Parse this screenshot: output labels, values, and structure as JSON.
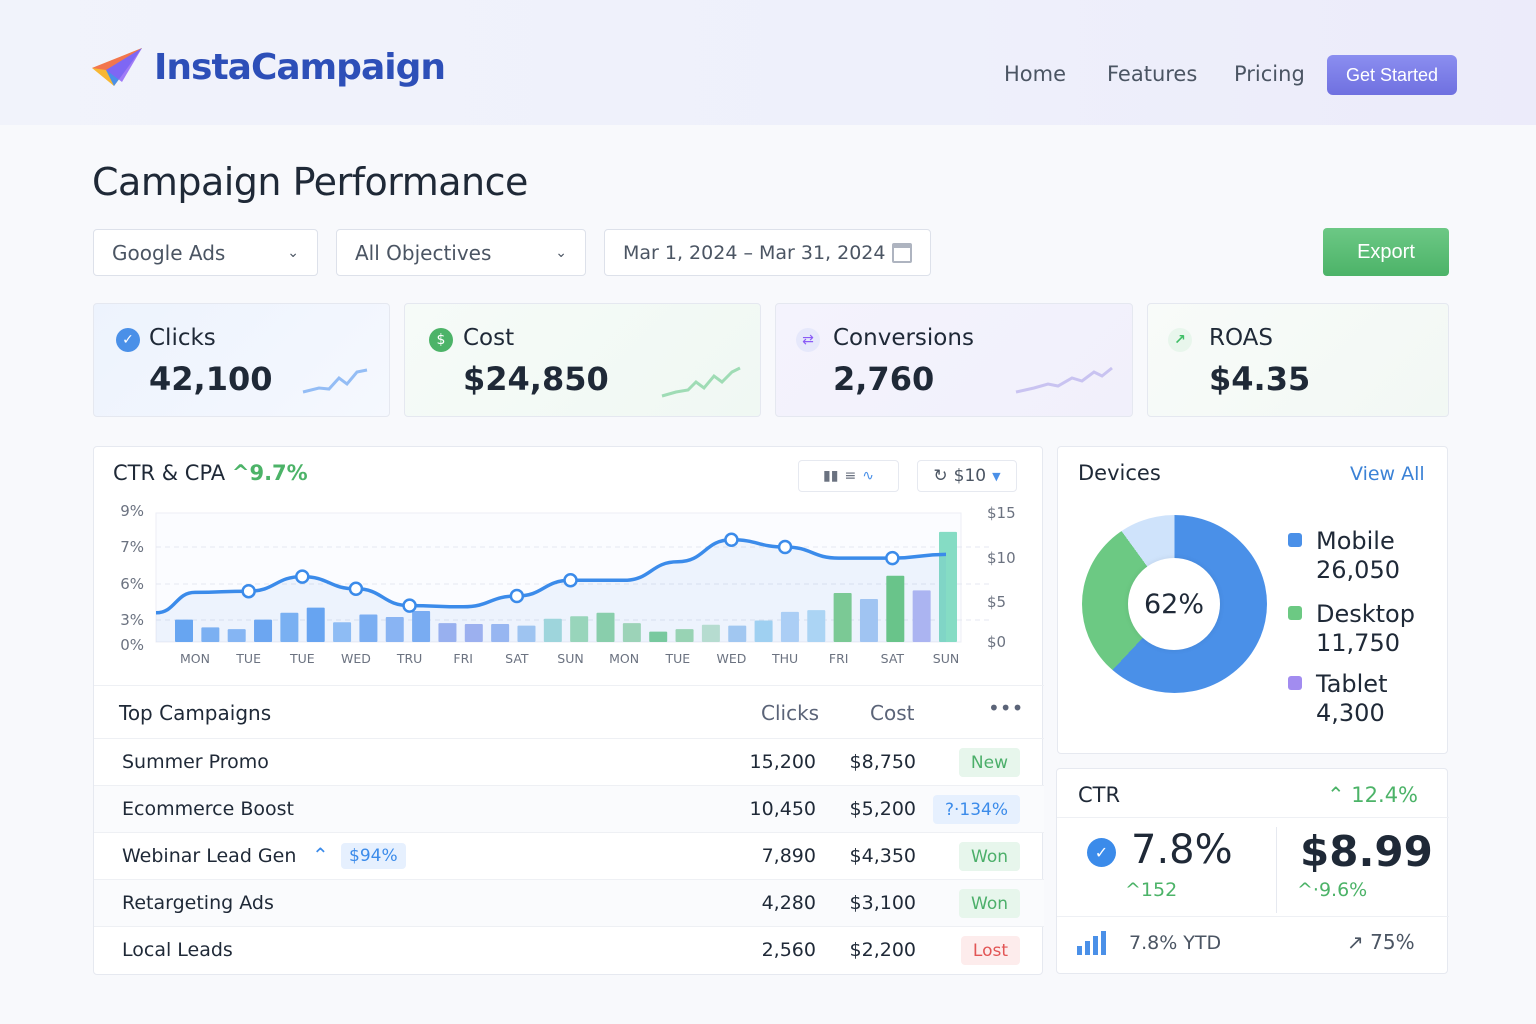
{
  "brand": {
    "name": "InstaCampaign"
  },
  "nav": {
    "items": [
      "Home",
      "Features",
      "Pricing"
    ],
    "cta": "Get Started"
  },
  "page": {
    "title": "Campaign Performance"
  },
  "filters": {
    "platform": "Google Ads",
    "objective": "All Objectives",
    "date_range": "Mar 1, 2024 – Mar 31, 2024",
    "export": "Export"
  },
  "kpis": [
    {
      "label": "Clicks",
      "value": "42,100",
      "icon": "check-circle-icon",
      "color": "#4a90e8"
    },
    {
      "label": "Cost",
      "value": "$24,850",
      "icon": "dollar-circle-icon",
      "color": "#4cb368"
    },
    {
      "label": "Conversions",
      "value": "2,760",
      "icon": "arrows-exchange-icon",
      "color": "#8b5cf6"
    },
    {
      "label": "ROAS",
      "value": "$4.35",
      "icon": "trend-up-icon",
      "color": "#3fbf66"
    }
  ],
  "ctr_chart": {
    "title": "CTR & CPA",
    "change": "^9.7%",
    "currency_select": "$10"
  },
  "chart_data": {
    "type": "bar+line",
    "categories": [
      "MON",
      "TUE",
      "TUE",
      "WED",
      "TRU",
      "FRI",
      "SAT",
      "SUN",
      "MON",
      "TUE",
      "WED",
      "THU",
      "FRI",
      "SAT",
      "SUN"
    ],
    "left_ticks": [
      "9%",
      "7%",
      "6%",
      "3%",
      "0%"
    ],
    "right_ticks": [
      "$15",
      "$10",
      "$5",
      "$0"
    ],
    "line_ctr_percent": [
      5.3,
      5.4,
      6.2,
      5.6,
      4.2,
      4.1,
      5.0,
      6.1,
      6.1,
      6.6,
      7.4,
      7.0,
      6.7,
      6.7,
      6.8
    ],
    "bars_cost_usd": [
      2.6,
      1.7,
      1.5,
      2.6,
      3.4,
      4.0,
      2.3,
      3.2,
      2.9,
      3.6,
      2.2,
      2.1,
      2.1,
      1.9,
      2.7,
      3.0,
      3.4,
      2.2,
      1.2,
      1.5,
      2.0,
      1.9,
      2.5,
      3.5,
      3.7,
      5.7,
      5.0,
      7.7,
      6.0,
      12.8
    ],
    "bar_colors": [
      "#6aa8f2",
      "#7fb3f4",
      "#8ab9f5",
      "#6fa9f2",
      "#7db4f4",
      "#6aa6f2",
      "#94c0f6",
      "#7fb1f4",
      "#8fb8f5",
      "#7daff3",
      "#9fb3f0",
      "#a3b4f0",
      "#9ebaf2",
      "#a5c9f2",
      "#a5dcdc",
      "#9fdcb8",
      "#8fd4a8",
      "#a3d9b5",
      "#7ccf9a",
      "#9fd9b0",
      "#bfe3cf",
      "#a9cdf2",
      "#a7d6f2",
      "#b3d4f7",
      "#b4dbf6",
      "#7fcf8f",
      "#a8c9f4",
      "#6cc983",
      "#b3b8f2",
      "#85dcc4"
    ],
    "ylim_left": [
      0,
      9
    ],
    "ylim_right": [
      0,
      15
    ],
    "grid": true
  },
  "devices": {
    "title": "Devices",
    "link": "View All",
    "center_label": "62%",
    "items": [
      {
        "label": "Mobile",
        "value": "26,050",
        "share": 62,
        "color": "#4a90e8"
      },
      {
        "label": "Desktop",
        "value": "11,750",
        "share": 28,
        "color": "#6cc983"
      },
      {
        "label": "Tablet",
        "value": "4,300",
        "share": 10,
        "color": "#a28cf0",
        "ring_color": "#cfe3fb"
      }
    ]
  },
  "campaigns": {
    "title": "Top Campaigns",
    "col_clicks": "Clicks",
    "col_cost": "Cost",
    "rows": [
      {
        "name": "Summer Promo",
        "clicks": "15,200",
        "cost": "$8,750",
        "badge": "New",
        "badge_type": "green"
      },
      {
        "name": "Ecommerce Boost",
        "clicks": "10,450",
        "cost": "$5,200",
        "badge": "?·134%",
        "badge_type": "blue"
      },
      {
        "name": "Webinar Lead Gen",
        "tag": "$94%",
        "clicks": "7,890",
        "cost": "$4,350",
        "badge": "Won",
        "badge_type": "green"
      },
      {
        "name": "Retargeting Ads",
        "clicks": "4,280",
        "cost": "$3,100",
        "badge": "Won",
        "badge_type": "green"
      },
      {
        "name": "Local Leads",
        "clicks": "2,560",
        "cost": "$2,200",
        "badge": "Lost",
        "badge_type": "red"
      }
    ]
  },
  "ctr_card": {
    "title": "CTR",
    "change": "12.4%",
    "value": "7.8%",
    "sub": "152",
    "cpa": "$8.99",
    "cpa_change": "·9.6%",
    "ytd": "7.8% YTD",
    "progress": "75%"
  }
}
